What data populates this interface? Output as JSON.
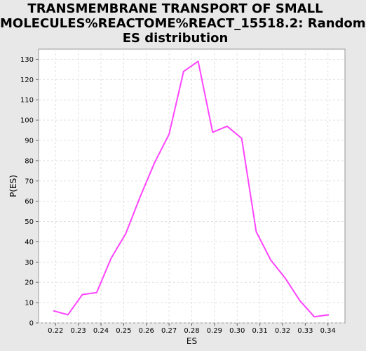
{
  "chart_data": {
    "type": "line",
    "title_lines": [
      "TRANSMEMBRANE TRANSPORT OF SMALL",
      "MOLECULES%REACTOME%REACT_15518.2: Random",
      "ES distribution"
    ],
    "xlabel": "ES",
    "ylabel": "P(ES)",
    "xlim": [
      0.2125,
      0.3475
    ],
    "ylim": [
      0,
      135
    ],
    "x_ticks": [
      0.22,
      0.23,
      0.24,
      0.25,
      0.26,
      0.27,
      0.28,
      0.29,
      0.3,
      0.31,
      0.32,
      0.33,
      0.34
    ],
    "x_tick_labels": [
      "0.22",
      "0.23",
      "0.24",
      "0.25",
      "0.26",
      "0.27",
      "0.28",
      "0.29",
      "0.30",
      "0.31",
      "0.32",
      "0.33",
      "0.34"
    ],
    "y_ticks": [
      0,
      10,
      20,
      30,
      40,
      50,
      60,
      70,
      80,
      90,
      100,
      110,
      120,
      130
    ],
    "y_tick_labels": [
      "0",
      "10",
      "20",
      "30",
      "40",
      "50",
      "60",
      "70",
      "80",
      "90",
      "100",
      "110",
      "120",
      "130"
    ],
    "grid": true,
    "series": [
      {
        "color": "#ff44ff",
        "x": [
          0.219,
          0.2254,
          0.2318,
          0.2381,
          0.2445,
          0.2509,
          0.2572,
          0.2636,
          0.27,
          0.2764,
          0.2828,
          0.2892,
          0.2956,
          0.302,
          0.3084,
          0.3148,
          0.3212,
          0.3276,
          0.334,
          0.3404
        ],
        "y": [
          6,
          4,
          14,
          15,
          32,
          44,
          62,
          79,
          93,
          124,
          129,
          94,
          97,
          91,
          45,
          31,
          22,
          11,
          3,
          4
        ]
      }
    ]
  }
}
